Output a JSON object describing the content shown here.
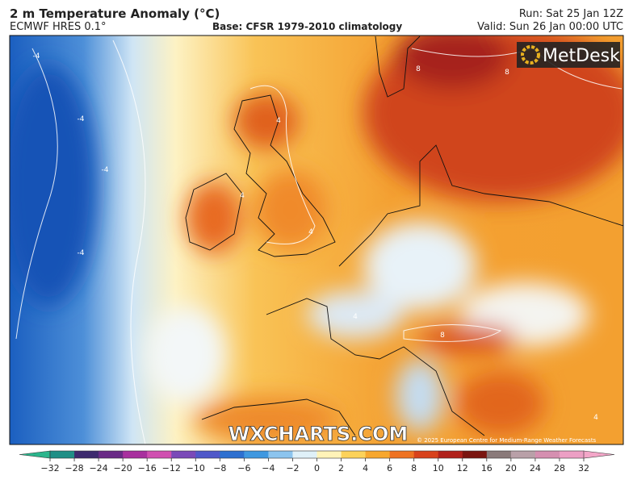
{
  "header": {
    "title": "2 m Temperature Anomaly (°C)",
    "model": "ECMWF HRES 0.1°",
    "base": "Base: CFSR 1979-2010 climatology",
    "run": "Run: Sat 25 Jan 12Z",
    "valid": "Valid: Sun 26 Jan 00:00 UTC"
  },
  "map": {
    "logo": "MetDesk",
    "watermark": "WXCHARTS.COM",
    "copyright": "© 2025 European Centre for Medium-Range Weather Forecasts",
    "contour_labels": [
      -4,
      -4,
      -4,
      -4,
      4,
      4,
      4,
      4,
      8,
      8,
      8,
      4
    ]
  },
  "colorbar": {
    "ticks": [
      {
        "value": -32,
        "label": "−32"
      },
      {
        "value": -28,
        "label": "−28"
      },
      {
        "value": -24,
        "label": "−24"
      },
      {
        "value": -20,
        "label": "−20"
      },
      {
        "value": -16,
        "label": "−16"
      },
      {
        "value": -12,
        "label": "−12"
      },
      {
        "value": -10,
        "label": "−10"
      },
      {
        "value": -8,
        "label": "−8"
      },
      {
        "value": -6,
        "label": "−6"
      },
      {
        "value": -4,
        "label": "−4"
      },
      {
        "value": -2,
        "label": "−2"
      },
      0,
      2,
      4,
      6,
      8,
      10,
      12,
      16,
      20,
      24,
      28,
      32
    ],
    "low_color": "#2bb58c",
    "high_color": "#f3a6c8",
    "colors": [
      "#1f8f86",
      "#3d2a6e",
      "#6a2a86",
      "#a8309e",
      "#d050b0",
      "#7a4ab8",
      "#4f58c9",
      "#2d70d0",
      "#3f98e0",
      "#8cc4ee",
      "#dff0f8",
      "#fff3b8",
      "#fcd25a",
      "#f7a72e",
      "#ee7222",
      "#d8421c",
      "#b0201a",
      "#7a1510",
      "#8a7a7a",
      "#b9a0a8",
      "#d58fb0",
      "#ec9fc4"
    ]
  }
}
